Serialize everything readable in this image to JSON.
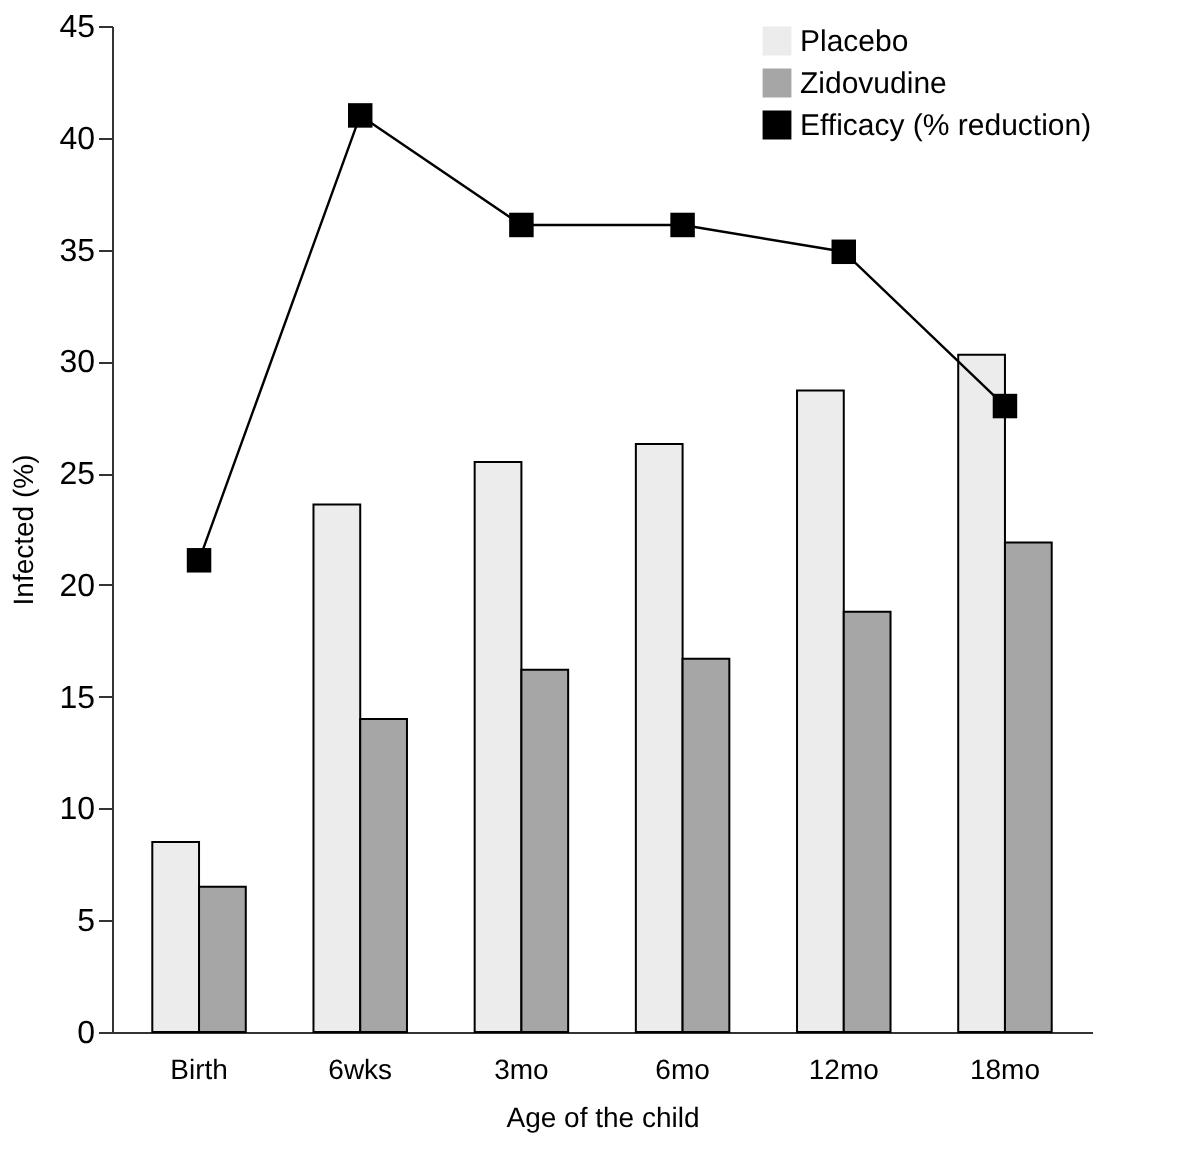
{
  "chart_data": {
    "type": "bar",
    "xlabel": "Age of the child",
    "ylabel": "Infected (%)",
    "categories": [
      "Birth",
      "6wks",
      "3mo",
      "6mo",
      "12mo",
      "18mo"
    ],
    "series": [
      {
        "name": "Placebo",
        "color": "#ececec",
        "values": [
          8.5,
          23.6,
          25.5,
          26.3,
          28.7,
          30.3
        ]
      },
      {
        "name": "Zidovudine",
        "color": "#a6a6a6",
        "values": [
          6.5,
          14.0,
          16.2,
          16.7,
          18.8,
          21.9
        ]
      },
      {
        "name": "Efficacy (% reduction)",
        "color": "#000000",
        "type": "line",
        "marker": "square",
        "line_style": "solid",
        "values": [
          21.1,
          41.0,
          36.1,
          36.1,
          34.9,
          28.0
        ]
      }
    ],
    "ylim": [
      0,
      45
    ],
    "yticks": [
      0,
      5,
      10,
      15,
      20,
      25,
      30,
      35,
      40,
      45
    ],
    "grid": false,
    "legend": "top right"
  }
}
